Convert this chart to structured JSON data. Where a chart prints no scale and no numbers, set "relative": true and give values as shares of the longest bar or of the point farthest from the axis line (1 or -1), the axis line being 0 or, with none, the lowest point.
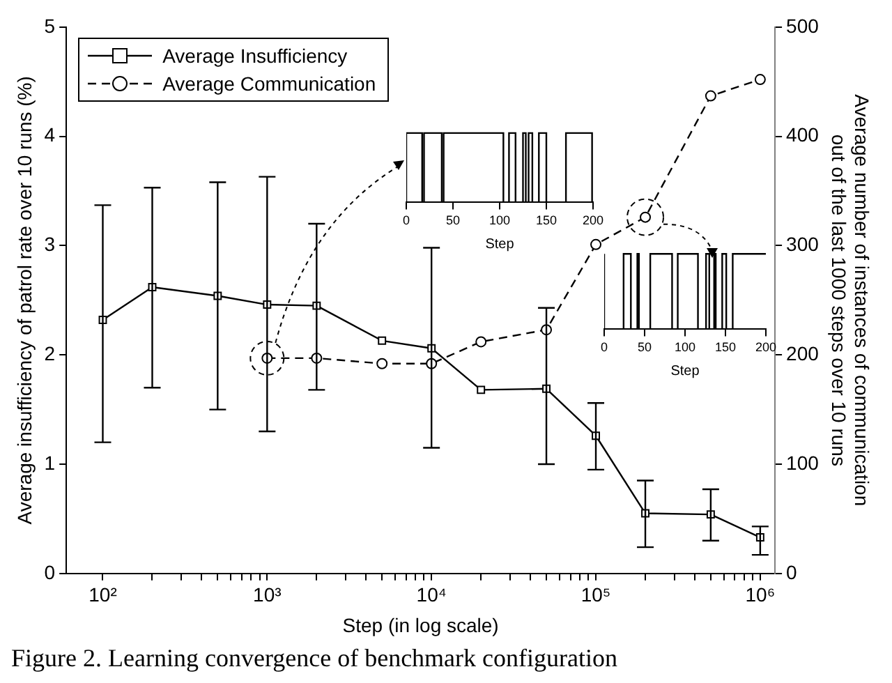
{
  "chart_data": [
    {
      "type": "line",
      "xlabel": "Step (in log scale)",
      "ylabel": "Average insufficiency of patrol rate over 10 runs (%)",
      "y2label": "Average number of instances of communication\nout of the last 1000 steps over 10 runs",
      "log": "x",
      "xlim": [
        60,
        1230000
      ],
      "xticks": [
        {
          "value": 100,
          "label": "10²"
        },
        {
          "value": 200,
          "label": null
        },
        {
          "value": 300,
          "label": null
        },
        {
          "value": 400,
          "label": null
        },
        {
          "value": 500,
          "label": null
        },
        {
          "value": 600,
          "label": null
        },
        {
          "value": 700,
          "label": null
        },
        {
          "value": 800,
          "label": null
        },
        {
          "value": 900,
          "label": null
        },
        {
          "value": 1000,
          "label": "10³"
        },
        {
          "value": 2000,
          "label": null
        },
        {
          "value": 3000,
          "label": null
        },
        {
          "value": 4000,
          "label": null
        },
        {
          "value": 5000,
          "label": null
        },
        {
          "value": 6000,
          "label": null
        },
        {
          "value": 7000,
          "label": null
        },
        {
          "value": 8000,
          "label": null
        },
        {
          "value": 9000,
          "label": null
        },
        {
          "value": 10000,
          "label": "10⁴"
        },
        {
          "value": 20000,
          "label": null
        },
        {
          "value": 30000,
          "label": null
        },
        {
          "value": 40000,
          "label": null
        },
        {
          "value": 50000,
          "label": null
        },
        {
          "value": 60000,
          "label": null
        },
        {
          "value": 70000,
          "label": null
        },
        {
          "value": 80000,
          "label": null
        },
        {
          "value": 90000,
          "label": null
        },
        {
          "value": 100000,
          "label": "10⁵"
        },
        {
          "value": 200000,
          "label": null
        },
        {
          "value": 300000,
          "label": null
        },
        {
          "value": 400000,
          "label": null
        },
        {
          "value": 500000,
          "label": null
        },
        {
          "value": 600000,
          "label": null
        },
        {
          "value": 700000,
          "label": null
        },
        {
          "value": 800000,
          "label": null
        },
        {
          "value": 900000,
          "label": null
        },
        {
          "value": 1000000,
          "label": "10⁶"
        }
      ],
      "ylim": [
        0,
        5
      ],
      "yticks": [
        0,
        1,
        2,
        3,
        4,
        5
      ],
      "y2lim": [
        0,
        500
      ],
      "y2ticks": [
        0,
        100,
        200,
        300,
        400,
        500
      ],
      "grid": false,
      "legend": "top left",
      "annotations": [
        "Figure 2. Learning convergence of benchmark configuration"
      ],
      "series": [
        {
          "name": "Average Insufficiency",
          "color": "#000000",
          "marker": "square",
          "line_style": "solid",
          "x": [
            100,
            200,
            500,
            1000,
            2000,
            5000,
            10000,
            20000,
            50000,
            100000,
            200000,
            500000,
            1000000
          ],
          "values": [
            2.32,
            2.62,
            2.54,
            2.46,
            2.45,
            2.13,
            2.06,
            1.68,
            1.69,
            1.26,
            0.55,
            0.54,
            0.33
          ],
          "errors": [
            [
              1.2,
              3.37
            ],
            [
              1.7,
              3.53
            ],
            [
              1.5,
              3.58
            ],
            [
              1.3,
              3.63
            ],
            [
              1.68,
              3.2
            ],
            null,
            [
              1.15,
              2.98
            ],
            null,
            [
              1.0,
              2.43
            ],
            [
              0.95,
              1.56
            ],
            [
              0.24,
              0.85
            ],
            [
              0.3,
              0.77
            ],
            [
              0.17,
              0.43
            ]
          ]
        },
        {
          "name": "Average Communication",
          "color": "#000000",
          "marker": "circle",
          "line_style": "dashed",
          "axis": "y2",
          "x": [
            1000,
            2000,
            5000,
            10000,
            20000,
            50000,
            100000,
            200000,
            500000,
            1000000
          ],
          "values": [
            197,
            197,
            192,
            192,
            212,
            223,
            301,
            326,
            437,
            452
          ]
        }
      ]
    },
    {
      "type": "step",
      "relative": true,
      "tick_labels": "x",
      "xlabel": "Step",
      "xlim": [
        0,
        200
      ],
      "xticks": [
        0,
        50,
        100,
        150,
        200
      ],
      "x": [
        0,
        17,
        19,
        38,
        40,
        104,
        110,
        117,
        125,
        128,
        131,
        135,
        142,
        150,
        171,
        199,
        200
      ],
      "values": [
        0,
        1,
        0,
        1,
        0,
        1,
        0,
        1,
        0,
        1,
        0,
        1,
        0,
        1,
        0,
        1,
        0
      ],
      "color": "#000000"
    },
    {
      "type": "step",
      "relative": true,
      "tick_labels": "x",
      "xlabel": "Step",
      "xlim": [
        0,
        200
      ],
      "xticks": [
        0,
        50,
        100,
        150,
        200
      ],
      "x": [
        0,
        24,
        33,
        41,
        43,
        57,
        84,
        91,
        92,
        100,
        116,
        126,
        130,
        136,
        138,
        146,
        151,
        159,
        197,
        200
      ],
      "values": [
        1,
        0,
        1,
        0,
        1,
        0,
        1,
        0,
        1,
        1,
        1,
        0,
        1,
        0,
        1,
        0,
        1,
        0,
        1,
        1
      ],
      "color": "#000000"
    }
  ]
}
